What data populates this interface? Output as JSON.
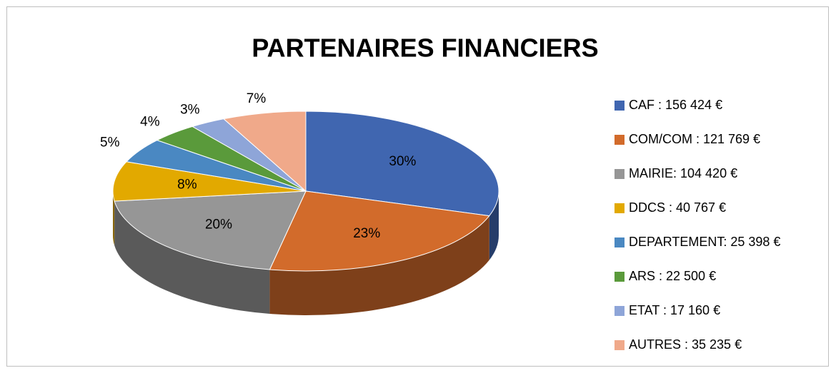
{
  "chart_data": {
    "type": "pie3d",
    "title": "PARTENAIRES  FINANCIERS",
    "categories": [
      "CAF : 156 424 €",
      "COM/COM : 121 769 €",
      "MAIRIE: 104 420 €",
      "DDCS : 40 767 €",
      "DEPARTEMENT: 25 398 €",
      "ARS : 22 500 €",
      "ETAT : 17 160 €",
      "AUTRES : 35 235 €"
    ],
    "values": [
      30,
      23,
      20,
      8,
      5,
      4,
      3,
      7
    ],
    "value_labels": [
      "30%",
      "23%",
      "20%",
      "8%",
      "5%",
      "4%",
      "3%",
      "7%"
    ],
    "colors": [
      "#4066b0",
      "#d26b2b",
      "#969696",
      "#e2a900",
      "#4a88c2",
      "#5a9a3b",
      "#8ea5d8",
      "#f0a98a"
    ],
    "legend": "right"
  }
}
